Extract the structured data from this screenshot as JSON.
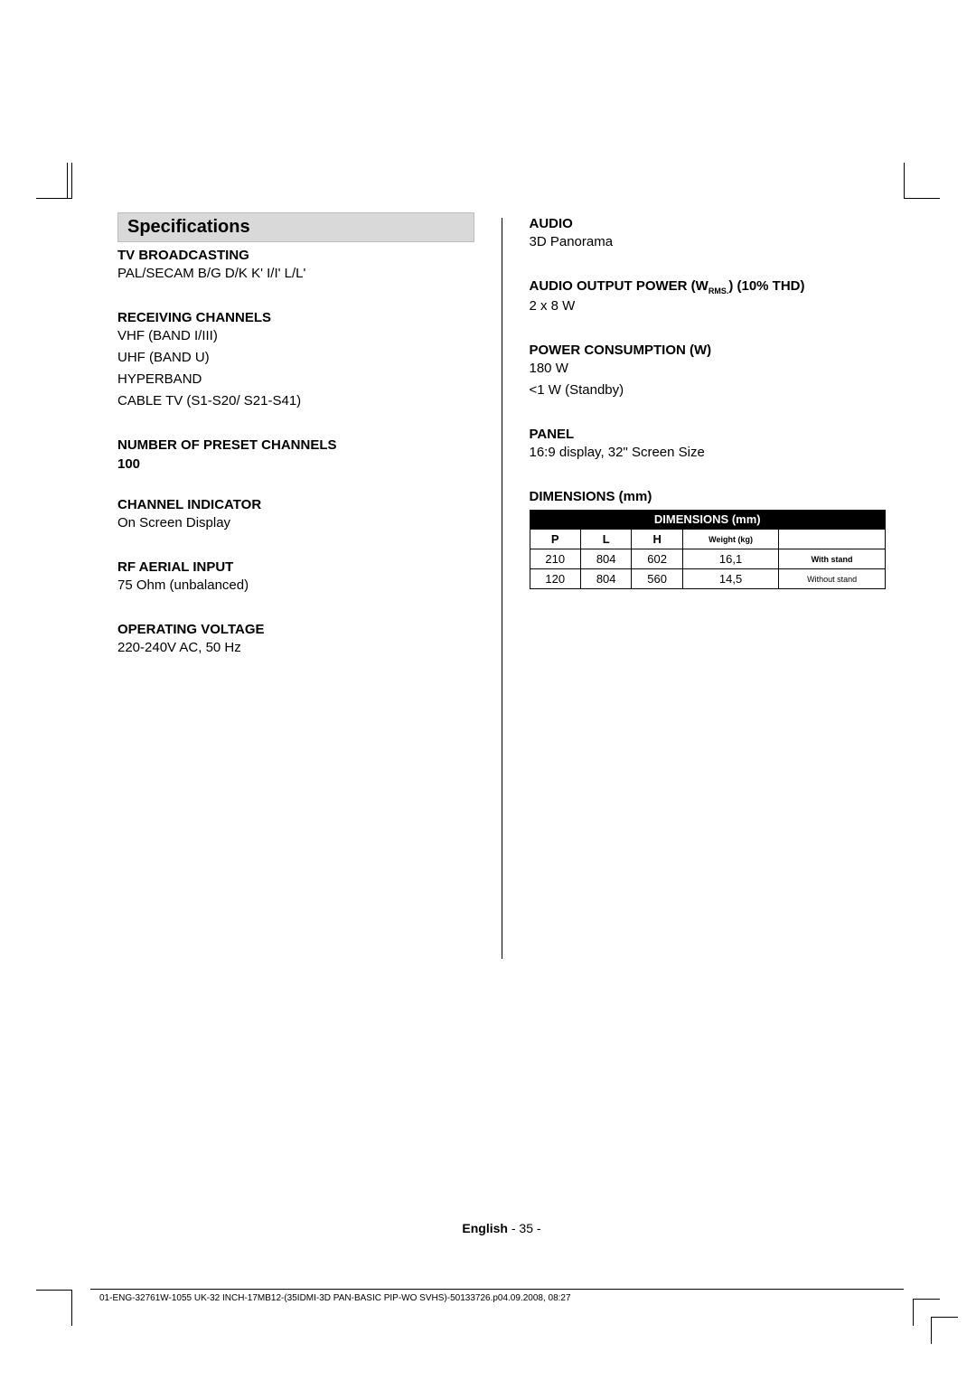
{
  "left": {
    "title": "Specifications",
    "sections": [
      {
        "heading": "TV BROADCASTING",
        "lines": [
          "PAL/SECAM B/G D/K K' I/I' L/L'"
        ]
      },
      {
        "heading": "RECEIVING CHANNELS",
        "lines": [
          "VHF (BAND I/III)",
          "UHF (BAND U)",
          "HYPERBAND",
          "CABLE TV (S1-S20/ S21-S41)"
        ]
      },
      {
        "heading": "NUMBER OF PRESET CHANNELS",
        "lines": [
          "100"
        ],
        "lines_bold": true
      },
      {
        "heading": "CHANNEL INDICATOR",
        "lines": [
          "On Screen Display"
        ]
      },
      {
        "heading": "RF AERIAL INPUT",
        "lines": [
          "75 Ohm (unbalanced)"
        ]
      },
      {
        "heading": "OPERATING VOLTAGE",
        "lines": [
          "220-240V AC, 50 Hz"
        ]
      }
    ]
  },
  "right": {
    "sections": [
      {
        "heading": "AUDIO",
        "lines": [
          "3D Panorama"
        ]
      },
      {
        "heading_html": "AUDIO OUTPUT POWER (W<sub class='rms'>RMS.</sub>) (10% THD)",
        "lines": [
          "2 x 8 W"
        ]
      },
      {
        "heading": "POWER CONSUMPTION (W)",
        "lines": [
          "180 W",
          "<1 W (Standby)"
        ]
      },
      {
        "heading": "PANEL",
        "lines": [
          "16:9 display, 32\" Screen Size"
        ]
      }
    ],
    "dimensions": {
      "heading": "DIMENSIONS (mm)",
      "table_header": "DIMENSIONS (mm)",
      "cols": [
        "P",
        "L",
        "H",
        "Weight (kg)",
        ""
      ],
      "rows": [
        [
          "210",
          "804",
          "602",
          "16,1",
          "With stand"
        ],
        [
          "120",
          "804",
          "560",
          "14,5",
          "Without stand"
        ]
      ]
    }
  },
  "footer": {
    "lang": "English",
    "page": "- 35 -",
    "note": "01-ENG-32761W-1055 UK-32 INCH-17MB12-(35IDMI-3D PAN-BASIC PIP-WO SVHS)-50133726.p04.09.2008, 08:27"
  }
}
